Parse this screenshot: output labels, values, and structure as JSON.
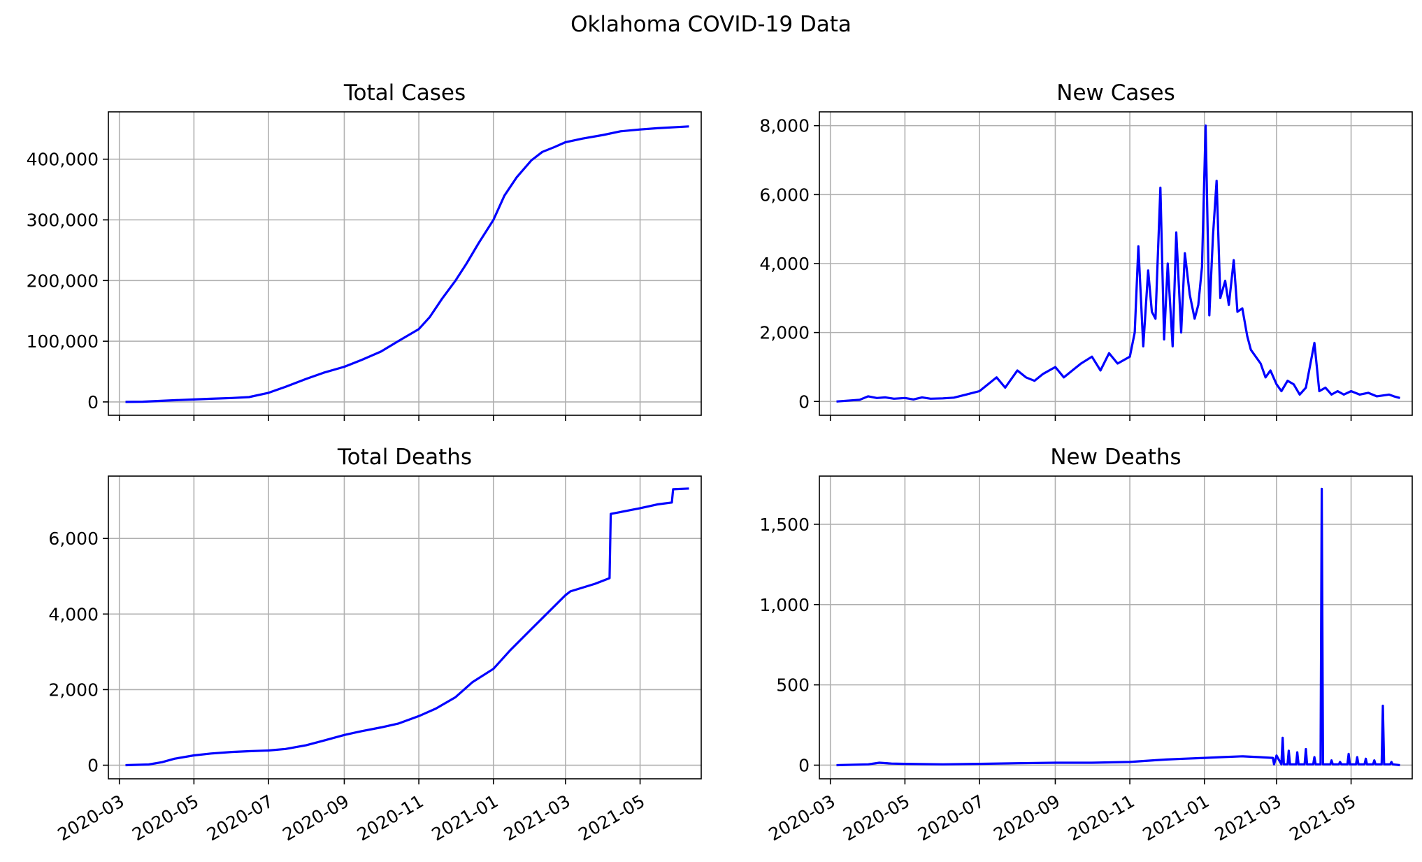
{
  "figure": {
    "title": "Oklahoma COVID-19 Data",
    "line_color": "#0000ff",
    "grid": true
  },
  "chart_data": [
    {
      "type": "line",
      "title": "Total Cases",
      "xlabel": "",
      "ylabel": "",
      "x_range": [
        "2020-02-21",
        "2021-06-20"
      ],
      "ylim": [
        -22000,
        478000
      ],
      "y_ticks": [
        0,
        100000,
        200000,
        300000,
        400000
      ],
      "y_tick_labels": [
        "0",
        "100,000",
        "200,000",
        "300,000",
        "400,000"
      ],
      "x_ticks": [
        "2020-03-01",
        "2020-05-01",
        "2020-07-01",
        "2020-09-01",
        "2020-11-01",
        "2021-01-01",
        "2021-03-01",
        "2021-05-01"
      ],
      "x_tick_labels": [],
      "series": [
        {
          "x": [
            "2020-03-06",
            "2020-03-20",
            "2020-04-01",
            "2020-04-15",
            "2020-05-01",
            "2020-05-15",
            "2020-06-01",
            "2020-06-15",
            "2020-07-01",
            "2020-07-15",
            "2020-08-01",
            "2020-08-15",
            "2020-09-01",
            "2020-09-15",
            "2020-10-01",
            "2020-10-15",
            "2020-11-01",
            "2020-11-10",
            "2020-11-20",
            "2020-12-01",
            "2020-12-10",
            "2020-12-20",
            "2021-01-01",
            "2021-01-10",
            "2021-01-20",
            "2021-02-01",
            "2021-02-10",
            "2021-02-20",
            "2021-03-01",
            "2021-03-15",
            "2021-04-01",
            "2021-04-15",
            "2021-05-01",
            "2021-05-15",
            "2021-06-01",
            "2021-06-10"
          ],
          "values": [
            0,
            300,
            1500,
            2800,
            4000,
            5200,
            6500,
            8000,
            15000,
            25000,
            38000,
            48000,
            58000,
            69000,
            83000,
            100000,
            120000,
            140000,
            170000,
            200000,
            228000,
            262000,
            300000,
            340000,
            370000,
            398000,
            412000,
            420000,
            428000,
            434000,
            440000,
            446000,
            449000,
            451000,
            453000,
            454000
          ]
        }
      ]
    },
    {
      "type": "line",
      "title": "New Cases",
      "xlabel": "",
      "ylabel": "",
      "x_range": [
        "2020-02-21",
        "2021-06-20"
      ],
      "ylim": [
        -400,
        8400
      ],
      "y_ticks": [
        0,
        2000,
        4000,
        6000,
        8000
      ],
      "y_tick_labels": [
        "0",
        "2,000",
        "4,000",
        "6,000",
        "8,000"
      ],
      "x_ticks": [
        "2020-03-01",
        "2020-05-01",
        "2020-07-01",
        "2020-09-01",
        "2020-11-01",
        "2021-01-01",
        "2021-03-01",
        "2021-05-01"
      ],
      "x_tick_labels": [],
      "series": [
        {
          "x": [
            "2020-03-06",
            "2020-03-25",
            "2020-04-01",
            "2020-04-08",
            "2020-04-15",
            "2020-04-22",
            "2020-05-01",
            "2020-05-08",
            "2020-05-15",
            "2020-05-22",
            "2020-06-01",
            "2020-06-10",
            "2020-06-20",
            "2020-07-01",
            "2020-07-08",
            "2020-07-15",
            "2020-07-22",
            "2020-08-01",
            "2020-08-08",
            "2020-08-15",
            "2020-08-22",
            "2020-09-01",
            "2020-09-08",
            "2020-09-15",
            "2020-09-22",
            "2020-10-01",
            "2020-10-08",
            "2020-10-15",
            "2020-10-22",
            "2020-11-01",
            "2020-11-05",
            "2020-11-08",
            "2020-11-12",
            "2020-11-16",
            "2020-11-19",
            "2020-11-22",
            "2020-11-26",
            "2020-11-29",
            "2020-12-02",
            "2020-12-06",
            "2020-12-09",
            "2020-12-13",
            "2020-12-16",
            "2020-12-20",
            "2020-12-24",
            "2020-12-27",
            "2020-12-30",
            "2021-01-02",
            "2021-01-05",
            "2021-01-08",
            "2021-01-11",
            "2021-01-14",
            "2021-01-18",
            "2021-01-21",
            "2021-01-25",
            "2021-01-28",
            "2021-02-01",
            "2021-02-05",
            "2021-02-08",
            "2021-02-12",
            "2021-02-16",
            "2021-02-20",
            "2021-02-24",
            "2021-03-01",
            "2021-03-05",
            "2021-03-10",
            "2021-03-15",
            "2021-03-20",
            "2021-03-25",
            "2021-04-01",
            "2021-04-05",
            "2021-04-10",
            "2021-04-15",
            "2021-04-20",
            "2021-04-25",
            "2021-05-01",
            "2021-05-08",
            "2021-05-15",
            "2021-05-22",
            "2021-06-01",
            "2021-06-05",
            "2021-06-10"
          ],
          "values": [
            0,
            50,
            150,
            100,
            120,
            80,
            100,
            60,
            120,
            80,
            90,
            110,
            200,
            300,
            500,
            700,
            400,
            900,
            700,
            600,
            800,
            1000,
            700,
            900,
            1100,
            1300,
            900,
            1400,
            1100,
            1300,
            2000,
            4500,
            1600,
            3800,
            2600,
            2400,
            6200,
            1800,
            4000,
            1600,
            4900,
            2000,
            4300,
            3100,
            2400,
            2800,
            3900,
            8000,
            2500,
            4800,
            6400,
            3000,
            3500,
            2800,
            4100,
            2600,
            2700,
            1900,
            1500,
            1300,
            1100,
            700,
            900,
            500,
            300,
            600,
            500,
            200,
            400,
            1700,
            300,
            400,
            200,
            300,
            200,
            300,
            200,
            250,
            150,
            200,
            150,
            100
          ]
        }
      ]
    },
    {
      "type": "line",
      "title": "Total Deaths",
      "xlabel": "",
      "ylabel": "",
      "x_range": [
        "2020-02-21",
        "2021-06-20"
      ],
      "ylim": [
        -360,
        7650
      ],
      "y_ticks": [
        0,
        2000,
        4000,
        6000
      ],
      "y_tick_labels": [
        "0",
        "2,000",
        "4,000",
        "6,000"
      ],
      "x_ticks": [
        "2020-03-01",
        "2020-05-01",
        "2020-07-01",
        "2020-09-01",
        "2020-11-01",
        "2021-01-01",
        "2021-03-01",
        "2021-05-01"
      ],
      "x_tick_labels": [
        "2020-03",
        "2020-05",
        "2020-07",
        "2020-09",
        "2020-11",
        "2021-01",
        "2021-03",
        "2021-05"
      ],
      "series": [
        {
          "x": [
            "2020-03-06",
            "2020-03-25",
            "2020-04-05",
            "2020-04-15",
            "2020-05-01",
            "2020-05-15",
            "2020-06-01",
            "2020-06-15",
            "2020-07-01",
            "2020-07-15",
            "2020-08-01",
            "2020-08-15",
            "2020-09-01",
            "2020-09-15",
            "2020-10-01",
            "2020-10-15",
            "2020-11-01",
            "2020-11-15",
            "2020-12-01",
            "2020-12-15",
            "2021-01-01",
            "2021-01-15",
            "2021-02-01",
            "2021-02-15",
            "2021-03-01",
            "2021-03-05",
            "2021-03-15",
            "2021-03-25",
            "2021-04-06",
            "2021-04-07",
            "2021-04-15",
            "2021-05-01",
            "2021-05-15",
            "2021-05-27",
            "2021-05-28",
            "2021-06-10"
          ],
          "values": [
            0,
            20,
            80,
            170,
            260,
            310,
            350,
            370,
            390,
            430,
            530,
            650,
            800,
            900,
            1000,
            1100,
            1300,
            1500,
            1800,
            2200,
            2550,
            3050,
            3600,
            4050,
            4500,
            4600,
            4700,
            4800,
            4950,
            6650,
            6700,
            6800,
            6900,
            6950,
            7300,
            7320
          ]
        }
      ]
    },
    {
      "type": "line",
      "title": "New Deaths",
      "xlabel": "",
      "ylabel": "",
      "x_range": [
        "2020-02-21",
        "2021-06-20"
      ],
      "ylim": [
        -85,
        1800
      ],
      "y_ticks": [
        0,
        500,
        1000,
        1500
      ],
      "y_tick_labels": [
        "0",
        "500",
        "1,000",
        "1,500"
      ],
      "x_ticks": [
        "2020-03-01",
        "2020-05-01",
        "2020-07-01",
        "2020-09-01",
        "2020-11-01",
        "2021-01-01",
        "2021-03-01",
        "2021-05-01"
      ],
      "x_tick_labels": [
        "2020-03",
        "2020-05",
        "2020-07",
        "2020-09",
        "2020-11",
        "2021-01",
        "2021-03",
        "2021-05"
      ],
      "series": [
        {
          "x": [
            "2020-03-06",
            "2020-04-01",
            "2020-04-10",
            "2020-04-20",
            "2020-05-01",
            "2020-06-01",
            "2020-07-01",
            "2020-08-01",
            "2020-09-01",
            "2020-10-01",
            "2020-11-01",
            "2020-11-20",
            "2020-12-01",
            "2020-12-15",
            "2021-01-01",
            "2021-01-15",
            "2021-02-01",
            "2021-02-15",
            "2021-02-26",
            "2021-02-27",
            "2021-03-01",
            "2021-03-05",
            "2021-03-06",
            "2021-03-07",
            "2021-03-10",
            "2021-03-11",
            "2021-03-12",
            "2021-03-17",
            "2021-03-18",
            "2021-03-19",
            "2021-03-24",
            "2021-03-25",
            "2021-03-26",
            "2021-03-31",
            "2021-04-01",
            "2021-04-02",
            "2021-04-06",
            "2021-04-07",
            "2021-04-08",
            "2021-04-14",
            "2021-04-15",
            "2021-04-16",
            "2021-04-21",
            "2021-04-22",
            "2021-04-23",
            "2021-04-28",
            "2021-04-29",
            "2021-04-30",
            "2021-05-05",
            "2021-05-06",
            "2021-05-07",
            "2021-05-12",
            "2021-05-13",
            "2021-05-14",
            "2021-05-19",
            "2021-05-20",
            "2021-05-21",
            "2021-05-26",
            "2021-05-27",
            "2021-05-28",
            "2021-06-02",
            "2021-06-03",
            "2021-06-04",
            "2021-06-10"
          ],
          "values": [
            0,
            5,
            15,
            10,
            8,
            5,
            8,
            12,
            15,
            15,
            20,
            30,
            35,
            40,
            45,
            50,
            55,
            50,
            45,
            5,
            60,
            5,
            170,
            5,
            5,
            90,
            5,
            5,
            80,
            5,
            5,
            100,
            5,
            5,
            50,
            5,
            5,
            1720,
            5,
            5,
            30,
            5,
            5,
            20,
            5,
            5,
            70,
            5,
            5,
            50,
            5,
            5,
            40,
            5,
            5,
            30,
            5,
            5,
            370,
            5,
            5,
            20,
            5,
            0
          ]
        }
      ]
    }
  ]
}
